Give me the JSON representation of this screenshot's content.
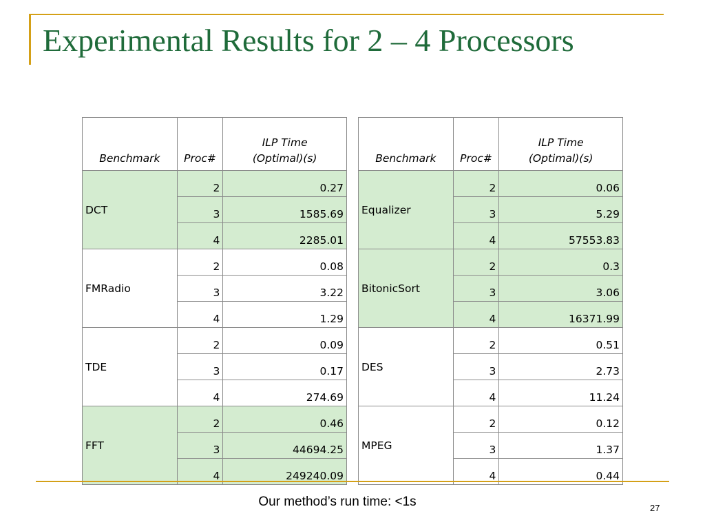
{
  "slide": {
    "title": "Experimental Results for 2 – 4 Processors",
    "footer": "Our method’s run time: <1s",
    "page_number": "27",
    "colors": {
      "title": "#1f6b3a",
      "accent_line": "#d4a017",
      "highlight": "#d4ecd0"
    }
  },
  "tables": [
    {
      "headers": {
        "benchmark": "Benchmark",
        "proc": "Proc#",
        "time_line1": "ILP Time",
        "time_line2": "(Optimal)(s)"
      },
      "groups": [
        {
          "name": "DCT",
          "highlight_name": true,
          "rows": [
            {
              "proc": "2",
              "time": "0.27",
              "highlight": true
            },
            {
              "proc": "3",
              "time": "1585.69",
              "highlight": true
            },
            {
              "proc": "4",
              "time": "2285.01",
              "highlight": true
            }
          ]
        },
        {
          "name": "FMRadio",
          "highlight_name": false,
          "rows": [
            {
              "proc": "2",
              "time": "0.08",
              "highlight": false
            },
            {
              "proc": "3",
              "time": "3.22",
              "highlight": false
            },
            {
              "proc": "4",
              "time": "1.29",
              "highlight": false
            }
          ]
        },
        {
          "name": "TDE",
          "highlight_name": false,
          "rows": [
            {
              "proc": "2",
              "time": "0.09",
              "highlight": false
            },
            {
              "proc": "3",
              "time": "0.17",
              "highlight": false
            },
            {
              "proc": "4",
              "time": "274.69",
              "highlight": false
            }
          ]
        },
        {
          "name": "FFT",
          "highlight_name": true,
          "rows": [
            {
              "proc": "2",
              "time": "0.46",
              "highlight": true
            },
            {
              "proc": "3",
              "time": "44694.25",
              "highlight": true
            },
            {
              "proc": "4",
              "time": "249240.09",
              "highlight": true
            }
          ]
        }
      ]
    },
    {
      "headers": {
        "benchmark": "Benchmark",
        "proc": "Proc#",
        "time_line1": "ILP Time",
        "time_line2": "(Optimal)(s)"
      },
      "groups": [
        {
          "name": "Equalizer",
          "highlight_name": true,
          "rows": [
            {
              "proc": "2",
              "time": "0.06",
              "highlight": true
            },
            {
              "proc": "3",
              "time": "5.29",
              "highlight": true
            },
            {
              "proc": "4",
              "time": "57553.83",
              "highlight": true
            }
          ]
        },
        {
          "name": "BitonicSort",
          "highlight_name": true,
          "rows": [
            {
              "proc": "2",
              "time": "0.3",
              "highlight": true
            },
            {
              "proc": "3",
              "time": "3.06",
              "highlight": true
            },
            {
              "proc": "4",
              "time": "16371.99",
              "highlight": true
            }
          ]
        },
        {
          "name": "DES",
          "highlight_name": false,
          "rows": [
            {
              "proc": "2",
              "time": "0.51",
              "highlight": false
            },
            {
              "proc": "3",
              "time": "2.73",
              "highlight": false
            },
            {
              "proc": "4",
              "time": "11.24",
              "highlight": false
            }
          ]
        },
        {
          "name": "MPEG",
          "highlight_name": false,
          "rows": [
            {
              "proc": "2",
              "time": "0.12",
              "highlight": false
            },
            {
              "proc": "3",
              "time": "1.37",
              "highlight": false
            },
            {
              "proc": "4",
              "time": "0.44",
              "highlight": false
            }
          ]
        }
      ]
    }
  ]
}
